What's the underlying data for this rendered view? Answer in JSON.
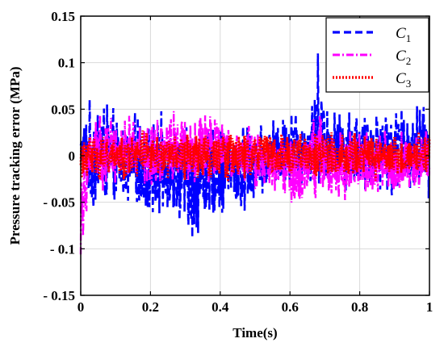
{
  "chart_data": {
    "type": "line",
    "title": "",
    "xlabel": "Time(s)",
    "ylabel": "Pressure tracking error (MPa)",
    "xlim": [
      0,
      1
    ],
    "ylim": [
      -0.15,
      0.15
    ],
    "xticks": [
      0,
      0.2,
      0.4,
      0.6,
      0.8,
      1
    ],
    "xtick_labels": [
      "0",
      "0.2",
      "0.4",
      "0.6",
      "0.8",
      "1"
    ],
    "yticks": [
      -0.15,
      -0.1,
      -0.05,
      0,
      0.05,
      0.1,
      0.15
    ],
    "ytick_labels": [
      "- 0.15",
      "- 0.1",
      "- 0.05",
      "0",
      "0.05",
      "0.1",
      "0.15"
    ],
    "grid": true,
    "legend_position": "top-right",
    "series": [
      {
        "name": "C",
        "sub": "1",
        "color": "#0000ff",
        "style": "dashed",
        "x": [
          0.0,
          0.02,
          0.04,
          0.06,
          0.08,
          0.1,
          0.12,
          0.14,
          0.16,
          0.18,
          0.2,
          0.22,
          0.24,
          0.26,
          0.28,
          0.3,
          0.32,
          0.34,
          0.36,
          0.38,
          0.4,
          0.42,
          0.44,
          0.46,
          0.48,
          0.5,
          0.52,
          0.54,
          0.56,
          0.58,
          0.6,
          0.62,
          0.64,
          0.66,
          0.68,
          0.7,
          0.72,
          0.74,
          0.76,
          0.78,
          0.8,
          0.82,
          0.84,
          0.86,
          0.88,
          0.9,
          0.92,
          0.94,
          0.96,
          0.98,
          1.0
        ],
        "upper": [
          0.03,
          0.06,
          0.07,
          0.08,
          0.06,
          0.05,
          0.04,
          0.045,
          0.05,
          0.04,
          0.04,
          0.045,
          0.05,
          0.04,
          0.045,
          0.04,
          0.035,
          0.04,
          0.035,
          0.035,
          0.04,
          0.035,
          0.03,
          0.035,
          0.04,
          0.03,
          0.035,
          0.04,
          0.045,
          0.045,
          0.06,
          0.055,
          0.05,
          0.06,
          0.12,
          0.07,
          0.06,
          0.05,
          0.06,
          0.055,
          0.06,
          0.05,
          0.06,
          0.065,
          0.06,
          0.055,
          0.06,
          0.06,
          0.06,
          0.065,
          0.05
        ],
        "lower": [
          -0.02,
          -0.05,
          -0.07,
          -0.06,
          -0.06,
          -0.06,
          -0.05,
          -0.065,
          -0.06,
          -0.07,
          -0.07,
          -0.08,
          -0.07,
          -0.06,
          -0.08,
          -0.09,
          -0.11,
          -0.085,
          -0.08,
          -0.07,
          -0.07,
          -0.065,
          -0.06,
          -0.08,
          -0.06,
          -0.055,
          -0.05,
          -0.045,
          -0.04,
          -0.045,
          -0.03,
          -0.035,
          -0.04,
          -0.04,
          -0.035,
          -0.03,
          -0.04,
          -0.035,
          -0.04,
          -0.045,
          -0.04,
          -0.045,
          -0.05,
          -0.04,
          -0.045,
          -0.05,
          -0.04,
          -0.045,
          -0.05,
          -0.04,
          -0.05
        ]
      },
      {
        "name": "C",
        "sub": "2",
        "color": "#ff00ff",
        "style": "dashdot",
        "x": [
          0.0,
          0.02,
          0.04,
          0.06,
          0.08,
          0.1,
          0.12,
          0.14,
          0.16,
          0.18,
          0.2,
          0.22,
          0.24,
          0.26,
          0.28,
          0.3,
          0.32,
          0.34,
          0.36,
          0.38,
          0.4,
          0.42,
          0.44,
          0.46,
          0.48,
          0.5,
          0.52,
          0.54,
          0.56,
          0.58,
          0.6,
          0.62,
          0.64,
          0.66,
          0.68,
          0.7,
          0.72,
          0.74,
          0.76,
          0.78,
          0.8,
          0.82,
          0.84,
          0.86,
          0.88,
          0.9,
          0.92,
          0.94,
          0.96,
          0.98,
          1.0
        ],
        "upper": [
          0.02,
          0.04,
          0.05,
          0.055,
          0.05,
          0.05,
          0.05,
          0.045,
          0.05,
          0.05,
          0.055,
          0.05,
          0.05,
          0.055,
          0.05,
          0.055,
          0.05,
          0.06,
          0.05,
          0.05,
          0.045,
          0.035,
          0.03,
          0.03,
          0.035,
          0.03,
          0.03,
          0.025,
          0.03,
          0.03,
          0.03,
          0.035,
          0.03,
          0.04,
          0.06,
          0.04,
          0.035,
          0.03,
          0.03,
          0.035,
          0.03,
          0.03,
          0.03,
          0.035,
          0.03,
          0.03,
          0.03,
          0.035,
          0.03,
          0.04,
          0.03
        ],
        "lower": [
          -0.12,
          -0.05,
          -0.04,
          -0.045,
          -0.04,
          -0.035,
          -0.035,
          -0.03,
          -0.04,
          -0.035,
          -0.04,
          -0.035,
          -0.03,
          -0.035,
          -0.035,
          -0.03,
          -0.035,
          -0.03,
          -0.03,
          -0.035,
          -0.04,
          -0.035,
          -0.03,
          -0.035,
          -0.03,
          -0.04,
          -0.045,
          -0.04,
          -0.045,
          -0.05,
          -0.06,
          -0.065,
          -0.055,
          -0.05,
          -0.045,
          -0.05,
          -0.055,
          -0.06,
          -0.05,
          -0.045,
          -0.05,
          -0.045,
          -0.05,
          -0.045,
          -0.04,
          -0.045,
          -0.05,
          -0.045,
          -0.04,
          -0.045,
          -0.04
        ]
      },
      {
        "name": "C",
        "sub": "3",
        "color": "#ff0000",
        "style": "dotted",
        "x": [
          0.0,
          0.02,
          0.04,
          0.06,
          0.08,
          0.1,
          0.12,
          0.14,
          0.16,
          0.18,
          0.2,
          0.22,
          0.24,
          0.26,
          0.28,
          0.3,
          0.32,
          0.34,
          0.36,
          0.38,
          0.4,
          0.42,
          0.44,
          0.46,
          0.48,
          0.5,
          0.52,
          0.54,
          0.56,
          0.58,
          0.6,
          0.62,
          0.64,
          0.66,
          0.68,
          0.7,
          0.72,
          0.74,
          0.76,
          0.78,
          0.8,
          0.82,
          0.84,
          0.86,
          0.88,
          0.9,
          0.92,
          0.94,
          0.96,
          0.98,
          1.0
        ],
        "upper": [
          0.02,
          0.025,
          0.025,
          0.03,
          0.025,
          0.025,
          0.03,
          0.025,
          0.025,
          0.03,
          0.025,
          0.025,
          0.03,
          0.025,
          0.025,
          0.03,
          0.025,
          0.025,
          0.03,
          0.025,
          0.025,
          0.03,
          0.025,
          0.025,
          0.03,
          0.025,
          0.025,
          0.03,
          0.025,
          0.025,
          0.03,
          0.025,
          0.025,
          0.03,
          0.025,
          0.025,
          0.03,
          0.025,
          0.025,
          0.03,
          0.025,
          0.025,
          0.03,
          0.025,
          0.025,
          0.03,
          0.025,
          0.025,
          0.03,
          0.025,
          0.025
        ],
        "lower": [
          -0.03,
          -0.025,
          -0.025,
          -0.03,
          -0.025,
          -0.025,
          -0.03,
          -0.025,
          -0.025,
          -0.03,
          -0.025,
          -0.025,
          -0.03,
          -0.025,
          -0.025,
          -0.03,
          -0.025,
          -0.025,
          -0.03,
          -0.025,
          -0.025,
          -0.03,
          -0.025,
          -0.025,
          -0.03,
          -0.025,
          -0.025,
          -0.03,
          -0.025,
          -0.025,
          -0.03,
          -0.025,
          -0.025,
          -0.03,
          -0.025,
          -0.025,
          -0.03,
          -0.025,
          -0.025,
          -0.03,
          -0.025,
          -0.025,
          -0.03,
          -0.025,
          -0.025,
          -0.03,
          -0.025,
          -0.025,
          -0.03,
          -0.025,
          -0.025
        ]
      }
    ]
  }
}
